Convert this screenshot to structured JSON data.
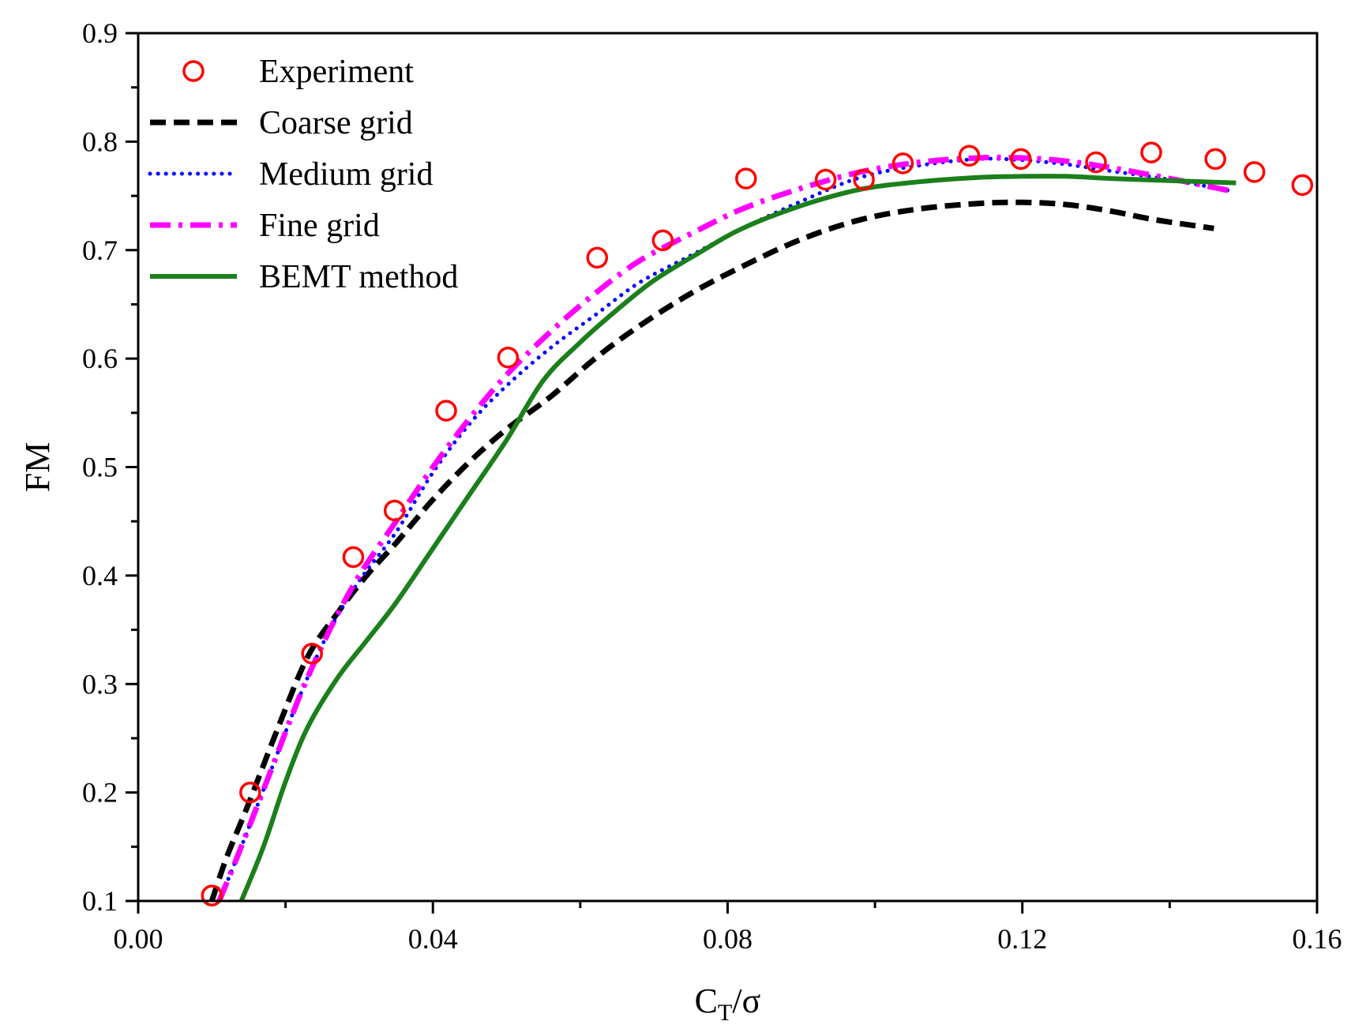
{
  "chart_data": {
    "type": "line",
    "title": "",
    "xlabel": {
      "main": "C",
      "sub": "T",
      "rest": "/σ"
    },
    "ylabel": "FM",
    "xlim": [
      0,
      0.16
    ],
    "ylim": [
      0.1,
      0.9
    ],
    "xticks": [
      0,
      0.04,
      0.08,
      0.12,
      0.16
    ],
    "xtick_labels": [
      "0.00",
      "0.04",
      "0.08",
      "0.12",
      "0.16"
    ],
    "xminor": [
      0.02,
      0.06,
      0.1,
      0.14
    ],
    "yticks": [
      0.1,
      0.2,
      0.3,
      0.4,
      0.5,
      0.6,
      0.7,
      0.8,
      0.9
    ],
    "ytick_labels": [
      "0.1",
      "0.2",
      "0.3",
      "0.4",
      "0.5",
      "0.6",
      "0.7",
      "0.8",
      "0.9"
    ],
    "yminor": [
      0.15,
      0.25,
      0.35,
      0.45,
      0.55,
      0.65,
      0.75,
      0.85
    ],
    "grid": false,
    "legend_position": "top-left",
    "series": [
      {
        "name": "Experiment",
        "style": "markers",
        "color": "#ff0000",
        "x": [
          0.01,
          0.0152,
          0.0236,
          0.0292,
          0.0348,
          0.0418,
          0.0502,
          0.0623,
          0.0712,
          0.0825,
          0.0933,
          0.0985,
          0.1038,
          0.1128,
          0.1198,
          0.13,
          0.1375,
          0.1462,
          0.1515,
          0.158
        ],
        "y": [
          0.105,
          0.2,
          0.328,
          0.417,
          0.46,
          0.552,
          0.601,
          0.693,
          0.709,
          0.766,
          0.765,
          0.765,
          0.78,
          0.787,
          0.784,
          0.781,
          0.79,
          0.784,
          0.772,
          0.76
        ]
      },
      {
        "name": "Coarse grid",
        "style": "dash",
        "color": "#000000",
        "x": [
          0.01,
          0.012,
          0.015,
          0.019,
          0.023,
          0.027,
          0.031,
          0.035,
          0.04,
          0.045,
          0.05,
          0.056,
          0.062,
          0.068,
          0.075,
          0.082,
          0.09,
          0.098,
          0.106,
          0.114,
          0.12,
          0.126,
          0.132,
          0.138,
          0.146
        ],
        "y": [
          0.1,
          0.14,
          0.19,
          0.26,
          0.325,
          0.365,
          0.4,
          0.43,
          0.47,
          0.505,
          0.535,
          0.565,
          0.6,
          0.63,
          0.66,
          0.685,
          0.71,
          0.728,
          0.738,
          0.743,
          0.744,
          0.742,
          0.736,
          0.728,
          0.72
        ]
      },
      {
        "name": "Medium grid",
        "style": "dot",
        "color": "#0000ff",
        "x": [
          0.011,
          0.014,
          0.018,
          0.022,
          0.026,
          0.03,
          0.035,
          0.04,
          0.045,
          0.05,
          0.056,
          0.062,
          0.068,
          0.075,
          0.082,
          0.09,
          0.098,
          0.106,
          0.114,
          0.12,
          0.126,
          0.132,
          0.14,
          0.148
        ],
        "y": [
          0.1,
          0.15,
          0.22,
          0.29,
          0.35,
          0.395,
          0.44,
          0.495,
          0.54,
          0.575,
          0.61,
          0.64,
          0.67,
          0.695,
          0.72,
          0.745,
          0.767,
          0.778,
          0.784,
          0.783,
          0.779,
          0.773,
          0.765,
          0.755
        ]
      },
      {
        "name": "Fine grid",
        "style": "dashdot",
        "color": "#ff00ff",
        "x": [
          0.011,
          0.014,
          0.018,
          0.022,
          0.026,
          0.03,
          0.035,
          0.04,
          0.045,
          0.05,
          0.056,
          0.062,
          0.068,
          0.075,
          0.082,
          0.09,
          0.098,
          0.106,
          0.114,
          0.12,
          0.126,
          0.132,
          0.14,
          0.148
        ],
        "y": [
          0.1,
          0.15,
          0.22,
          0.29,
          0.35,
          0.4,
          0.45,
          0.5,
          0.545,
          0.585,
          0.625,
          0.66,
          0.69,
          0.715,
          0.738,
          0.757,
          0.772,
          0.781,
          0.785,
          0.785,
          0.782,
          0.776,
          0.766,
          0.755
        ]
      },
      {
        "name": "BEMT method",
        "style": "solid",
        "color": "#1b7f1b",
        "x": [
          0.014,
          0.017,
          0.02,
          0.023,
          0.027,
          0.031,
          0.035,
          0.04,
          0.045,
          0.05,
          0.055,
          0.06,
          0.065,
          0.07,
          0.076,
          0.082,
          0.09,
          0.098,
          0.106,
          0.114,
          0.12,
          0.126,
          0.132,
          0.14,
          0.149
        ],
        "y": [
          0.1,
          0.15,
          0.21,
          0.26,
          0.305,
          0.34,
          0.375,
          0.425,
          0.475,
          0.525,
          0.58,
          0.615,
          0.645,
          0.672,
          0.697,
          0.72,
          0.741,
          0.756,
          0.763,
          0.767,
          0.768,
          0.768,
          0.766,
          0.764,
          0.762
        ]
      }
    ]
  }
}
